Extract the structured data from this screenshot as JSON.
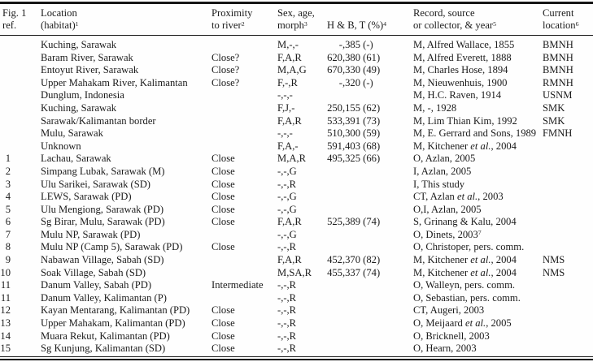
{
  "table": {
    "fig_ref_header": {
      "line1": "Fig. 1",
      "line2": "ref."
    },
    "columns": [
      {
        "id": "ref",
        "line1": "Fig. 1",
        "line2": "ref."
      },
      {
        "id": "location",
        "line1": "Location",
        "line2": "(habitat)^1"
      },
      {
        "id": "proximity",
        "line1": "Proximity",
        "line2": "to river^2"
      },
      {
        "id": "sex",
        "line1": "Sex, age,",
        "line2": "morph^3"
      },
      {
        "id": "hb",
        "line1": "",
        "line2": "H & B, T (%)^4"
      },
      {
        "id": "record",
        "line1": "Record, source",
        "line2": "or collector, & year^5"
      },
      {
        "id": "current",
        "line1": "Current",
        "line2": "location^6"
      }
    ],
    "rows": [
      [
        "",
        "Kuching, Sarawak",
        "",
        "M,-,-",
        "-,385 (-)",
        "M, Alfred Wallace, 1855",
        "BMNH"
      ],
      [
        "",
        "Baram River, Sarawak",
        "Close?",
        "F,A,R",
        "620,380 (61)",
        "M, Alfred Everett, 1888",
        "BMNH"
      ],
      [
        "",
        "Entoyut River, Sarawak",
        "Close?",
        "M,A,G",
        "670,330 (49)",
        "M, Charles Hose, 1894",
        "BMNH"
      ],
      [
        "",
        "Upper Mahakam River, Kalimantan",
        "Close?",
        "F,-,R",
        "-,320 (-)",
        "M, Nieuwenhuis, 1900",
        "RMNH"
      ],
      [
        "",
        "Dunglum, Indonesia",
        "",
        "-,-,-",
        "",
        "M, H.C. Raven, 1914",
        "USNM"
      ],
      [
        "",
        "Kuching, Sarawak",
        "",
        "F,J,-",
        "250,155 (62)",
        "M, -, 1928",
        "SMK"
      ],
      [
        "",
        "Sarawak/Kalimantan border",
        "",
        "F,A,R",
        "533,391 (73)",
        "M, Lim Thian Kim, 1992",
        "SMK"
      ],
      [
        "",
        "Mulu, Sarawak",
        "",
        "-,-,-",
        "510,300 (59)",
        "M, E. Gerrard and Sons, 1989",
        "FMNH"
      ],
      [
        "",
        "Unknown",
        "",
        "F,A,-",
        "591,403 (68)",
        "M, Kitchener *et al.*, 2004",
        ""
      ],
      [
        "1",
        "Lachau, Sarawak",
        "Close",
        "M,A,R",
        "495,325 (66)",
        "O, Azlan, 2005",
        ""
      ],
      [
        "2",
        "Simpang Lubak, Sarawak (M)",
        "Close",
        "-,-,G",
        "",
        "I, Azlan, 2005",
        ""
      ],
      [
        "3",
        "Ulu Sarikei, Sarawak (SD)",
        "Close",
        "-,-,R",
        "",
        "I, This study",
        ""
      ],
      [
        "4",
        "LEWS, Sarawak (PD)",
        "Close",
        "-,-,G",
        "",
        "CT, Azlan *et al.*, 2003",
        ""
      ],
      [
        "5",
        "Ulu Mengiong, Sarawak (PD)",
        "Close",
        "-,-,G",
        "",
        "O,I, Azlan, 2005",
        ""
      ],
      [
        "6",
        "Sg Birar, Mulu, Sarawak (PD)",
        "Close",
        "F,A,R",
        "525,389 (74)",
        "S, Grinang & Kalu, 2004",
        ""
      ],
      [
        "7",
        "Mulu NP, Sarawak (PD)",
        "",
        "-,-,G",
        "",
        "O, Dinets, 2003^7",
        ""
      ],
      [
        "8",
        "Mulu NP (Camp 5), Sarawak (PD)",
        "Close",
        "-,-,R",
        "",
        "O, Christoper, pers. comm.",
        ""
      ],
      [
        "9",
        "Nabawan Village, Sabah (SD)",
        "",
        "F,A,R",
        "452,370 (82)",
        "M, Kitchener *et al.*, 2004",
        "NMS"
      ],
      [
        "10",
        "Soak Village, Sabah (SD)",
        "",
        "M,SA,R",
        "455,337 (74)",
        "M, Kitchener *et al.*, 2004",
        "NMS"
      ],
      [
        "11",
        "Danum Valley, Sabah (PD)",
        "Intermediate",
        "-,-,R",
        "",
        "O, Walleyn, pers. comm.",
        ""
      ],
      [
        "11",
        "Danum Valley, Kalimantan (P)",
        "",
        "-,-,R",
        "",
        "O, Sebastian, pers. comm.",
        ""
      ],
      [
        "12",
        "Kayan Mentarang, Kalimantan (PD)",
        "Close",
        "-,-,R",
        "",
        "CT, Augeri, 2003",
        ""
      ],
      [
        "13",
        "Upper Mahakam, Kalimantan (PD)",
        "Close",
        "-,-,R",
        "",
        "O, Meijaard *et al.*, 2005",
        ""
      ],
      [
        "14",
        "Muara Rekut, Kalimantan (PD)",
        "Close",
        "-,-,R",
        "",
        "O, Bricknell, 2003",
        ""
      ],
      [
        "15",
        "Sg Kunjung, Kalimantan (SD)",
        "Close",
        "-,-,R",
        "",
        "O, Hearn, 2003",
        ""
      ]
    ]
  }
}
